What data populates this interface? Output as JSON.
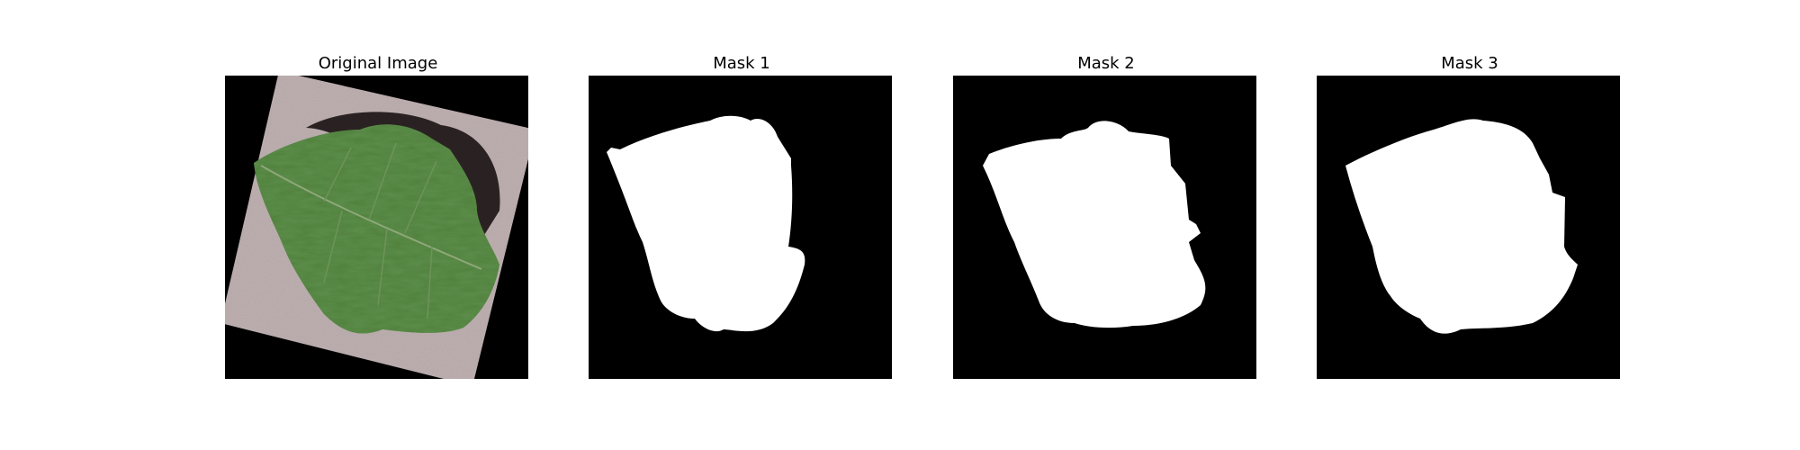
{
  "panels": [
    {
      "title": "Original Image",
      "kind": "photo"
    },
    {
      "title": "Mask 1",
      "kind": "mask"
    },
    {
      "title": "Mask 2",
      "kind": "mask"
    },
    {
      "title": "Mask 3",
      "kind": "mask"
    }
  ],
  "colors": {
    "mask_background": "#000000",
    "mask_foreground": "#ffffff",
    "leaf_green": "#4f7f3a",
    "surface_gray": "#b9a9aa"
  }
}
